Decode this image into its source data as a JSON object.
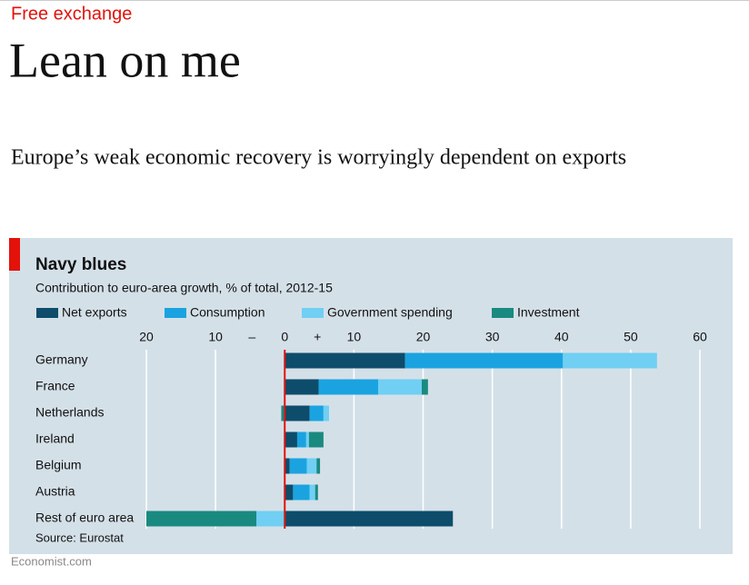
{
  "header": {
    "section": "Free exchange",
    "title": "Lean on me",
    "subtitle": "Europe’s weak economic recovery is worryingly dependent on exports"
  },
  "footer": {
    "site": "Economist.com"
  },
  "chart_data": {
    "type": "stacked-bar-horizontal",
    "title": "Navy blues",
    "subtitle": "Contribution to euro-area growth, % of total, 2012-15",
    "source": "Source: Eurostat",
    "annotations": {
      "minus": "–",
      "plus": "+"
    },
    "categories": [
      "Germany",
      "France",
      "Netherlands",
      "Ireland",
      "Belgium",
      "Austria",
      "Rest of euro area"
    ],
    "series": [
      {
        "name": "Net exports",
        "color": "#0d4d6b",
        "values": [
          17.4,
          4.9,
          3.6,
          1.8,
          0.7,
          1.2,
          24.3
        ]
      },
      {
        "name": "Consumption",
        "color": "#1aa3e0",
        "values": [
          22.8,
          8.6,
          2.0,
          1.3,
          2.5,
          2.4,
          0
        ]
      },
      {
        "name": "Government spending",
        "color": "#70cff3",
        "values": [
          13.6,
          6.3,
          0.8,
          0.4,
          1.4,
          0.8,
          -4.1
        ]
      },
      {
        "name": "Investment",
        "color": "#1a8a80",
        "values": [
          0,
          0.9,
          -0.5,
          2.1,
          0.5,
          0.4,
          -15.9
        ]
      }
    ],
    "xlim": [
      -20,
      60
    ],
    "xticks": [
      {
        "value": -20,
        "label": "20"
      },
      {
        "value": -10,
        "label": "10"
      },
      0,
      10,
      20,
      30,
      40,
      50,
      60
    ],
    "grid": true,
    "zero_line_color": "#e3120b"
  }
}
